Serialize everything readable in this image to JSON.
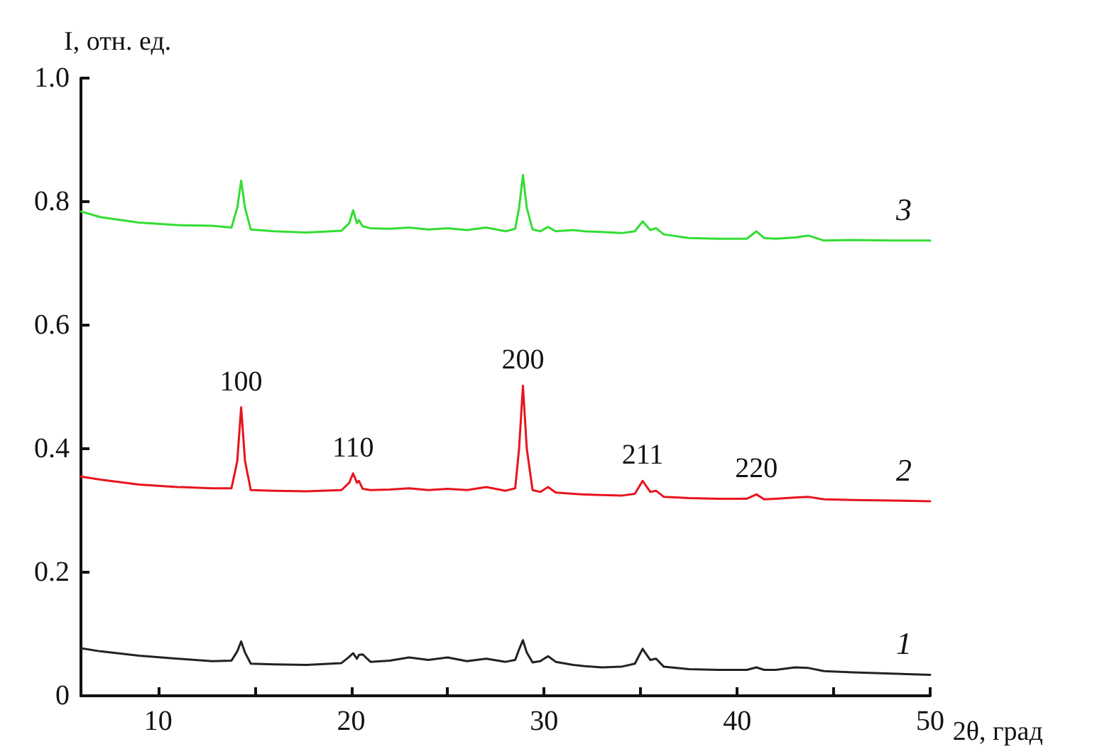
{
  "chart_data": {
    "type": "line",
    "xlabel": "2θ, град",
    "ylabel": "I, отн. ед.",
    "xlim": [
      6,
      50
    ],
    "xticks": [
      10,
      {
        "value": 15,
        "label": null
      },
      20,
      {
        "value": 25,
        "label": null
      },
      30,
      {
        "value": 35,
        "label": null
      },
      40,
      {
        "value": 45,
        "label": null
      },
      50
    ],
    "ylim": [
      0,
      1
    ],
    "yticks": [
      0,
      0.2,
      0.4,
      0.6,
      0.8,
      {
        "value": 1,
        "label": "1.0"
      }
    ],
    "grid": false,
    "legend": false,
    "marker": "none",
    "line_style": "solid",
    "x": [
      6,
      7,
      9,
      11,
      12.8,
      13.8,
      14.1,
      14.3,
      14.5,
      14.8,
      16,
      17.7,
      19.5,
      19.9,
      20.1,
      20.3,
      20.4,
      20.6,
      21,
      22,
      23,
      24,
      25,
      26,
      27,
      28,
      28.5,
      28.7,
      28.9,
      29.1,
      29.4,
      29.8,
      30.2,
      30.6,
      31.5,
      32.1,
      33,
      34,
      34.7,
      35.1,
      35.5,
      35.8,
      36.2,
      37.5,
      39,
      40.5,
      41,
      41.4,
      42,
      43,
      43.7,
      44.5,
      46,
      48,
      50
    ],
    "series": [
      {
        "name": "1",
        "color": "#222222",
        "values": [
          0.077,
          0.072,
          0.065,
          0.06,
          0.056,
          0.057,
          0.072,
          0.088,
          0.07,
          0.052,
          0.051,
          0.05,
          0.053,
          0.063,
          0.069,
          0.06,
          0.066,
          0.067,
          0.055,
          0.057,
          0.062,
          0.058,
          0.062,
          0.056,
          0.06,
          0.055,
          0.058,
          0.075,
          0.09,
          0.07,
          0.054,
          0.056,
          0.064,
          0.055,
          0.05,
          0.048,
          0.046,
          0.047,
          0.052,
          0.076,
          0.058,
          0.06,
          0.047,
          0.043,
          0.042,
          0.042,
          0.046,
          0.042,
          0.042,
          0.046,
          0.045,
          0.04,
          0.038,
          0.036,
          0.034
        ]
      },
      {
        "name": "2",
        "color": "#e8141c",
        "values": [
          0.355,
          0.35,
          0.342,
          0.338,
          0.336,
          0.336,
          0.38,
          0.467,
          0.38,
          0.333,
          0.332,
          0.331,
          0.333,
          0.345,
          0.36,
          0.345,
          0.348,
          0.335,
          0.333,
          0.334,
          0.336,
          0.333,
          0.335,
          0.333,
          0.338,
          0.332,
          0.336,
          0.4,
          0.502,
          0.4,
          0.333,
          0.33,
          0.338,
          0.329,
          0.327,
          0.326,
          0.325,
          0.324,
          0.327,
          0.348,
          0.33,
          0.332,
          0.322,
          0.32,
          0.319,
          0.319,
          0.326,
          0.318,
          0.319,
          0.321,
          0.322,
          0.318,
          0.317,
          0.316,
          0.315
        ]
      },
      {
        "name": "3",
        "color": "#33dd33",
        "values": [
          0.784,
          0.775,
          0.766,
          0.762,
          0.761,
          0.758,
          0.79,
          0.834,
          0.79,
          0.755,
          0.752,
          0.75,
          0.753,
          0.765,
          0.786,
          0.765,
          0.77,
          0.76,
          0.757,
          0.756,
          0.758,
          0.755,
          0.757,
          0.754,
          0.758,
          0.752,
          0.756,
          0.79,
          0.843,
          0.79,
          0.755,
          0.752,
          0.759,
          0.752,
          0.754,
          0.752,
          0.751,
          0.749,
          0.752,
          0.768,
          0.754,
          0.757,
          0.747,
          0.741,
          0.74,
          0.74,
          0.752,
          0.741,
          0.74,
          0.742,
          0.745,
          0.737,
          0.738,
          0.737,
          0.737
        ]
      }
    ],
    "annotations": [
      {
        "text": "100",
        "x": 14.3,
        "y": 0.467
      },
      {
        "text": "110",
        "x": 20.1,
        "y": 0.36
      },
      {
        "text": "200",
        "x": 28.9,
        "y": 0.502
      },
      {
        "text": "211",
        "x": 35.1,
        "y": 0.348
      },
      {
        "text": "220",
        "x": 41,
        "y": 0.326
      }
    ]
  }
}
